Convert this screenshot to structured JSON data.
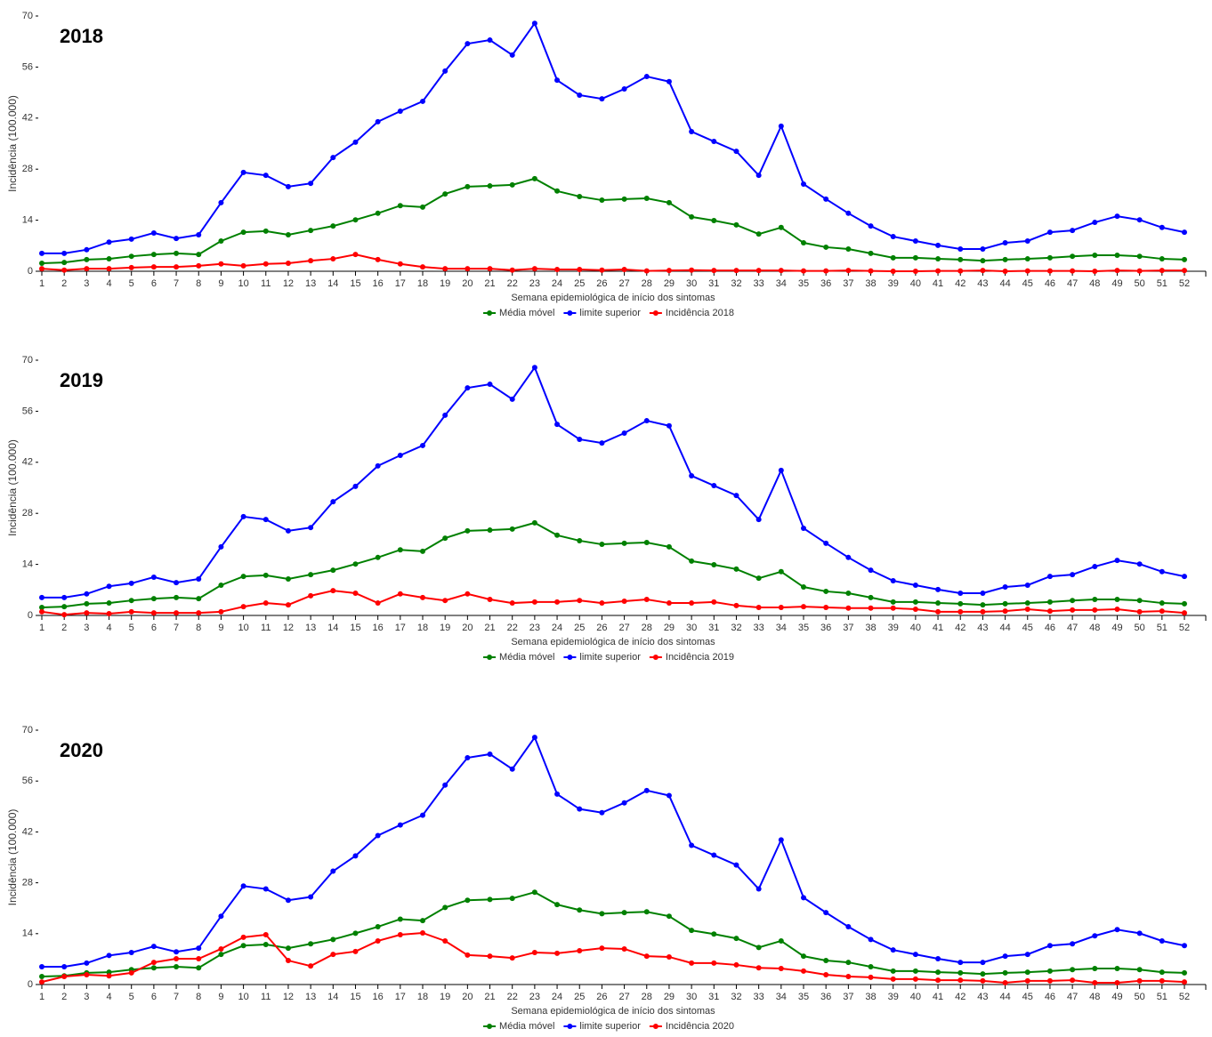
{
  "chart_data": [
    {
      "type": "line",
      "title": "2018",
      "y_label": "Incidência (100.000)",
      "x_label": "Semana epidemiológica de início dos sintomas",
      "x": [
        1,
        2,
        3,
        4,
        5,
        6,
        7,
        8,
        9,
        10,
        11,
        12,
        13,
        14,
        15,
        16,
        17,
        18,
        19,
        20,
        21,
        22,
        23,
        24,
        25,
        26,
        27,
        28,
        29,
        30,
        31,
        32,
        33,
        34,
        35,
        36,
        37,
        38,
        39,
        40,
        41,
        42,
        43,
        44,
        45,
        46,
        47,
        48,
        49,
        50,
        51,
        52
      ],
      "xlim": [
        1,
        52
      ],
      "ylim": [
        0,
        70
      ],
      "yticks": [
        0,
        14,
        28,
        42,
        56,
        70
      ],
      "series": [
        {
          "name": "Média móvel",
          "color": "#008000",
          "values": [
            2.2,
            2.4,
            3.2,
            3.4,
            4.1,
            4.6,
            4.9,
            4.6,
            8.3,
            10.7,
            11.0,
            10.0,
            11.2,
            12.4,
            14.1,
            15.9,
            18.0,
            17.6,
            21.2,
            23.2,
            23.4,
            23.7,
            25.4,
            22.0,
            20.5,
            19.5,
            19.8,
            20.0,
            18.8,
            14.9,
            13.9,
            12.7,
            10.2,
            12.0,
            7.8,
            6.6,
            6.1,
            4.9,
            3.7,
            3.7,
            3.4,
            3.2,
            2.9,
            3.2,
            3.4,
            3.7,
            4.1,
            4.4,
            4.4,
            4.1,
            3.4,
            3.2
          ]
        },
        {
          "name": "limite superior",
          "color": "#0000ff",
          "values": [
            4.9,
            4.9,
            5.9,
            8.0,
            8.8,
            10.5,
            9.0,
            10.0,
            18.8,
            27.1,
            26.3,
            23.2,
            24.1,
            31.2,
            35.4,
            41.0,
            43.9,
            46.6,
            54.9,
            62.4,
            63.4,
            59.3,
            68.0,
            52.4,
            48.3,
            47.3,
            50.0,
            53.4,
            52.0,
            38.3,
            35.6,
            32.9,
            26.3,
            39.8,
            23.9,
            19.8,
            15.9,
            12.4,
            9.5,
            8.3,
            7.1,
            6.1,
            6.1,
            7.8,
            8.3,
            10.7,
            11.2,
            13.4,
            15.1,
            14.1,
            12.0,
            10.7
          ]
        },
        {
          "name": "Incidência 2018",
          "color": "#ff0000",
          "values": [
            0.7,
            0.3,
            0.7,
            0.7,
            1.0,
            1.2,
            1.2,
            1.5,
            2.0,
            1.5,
            2.0,
            2.2,
            2.9,
            3.4,
            4.6,
            3.2,
            2.0,
            1.2,
            0.7,
            0.7,
            0.7,
            0.3,
            0.7,
            0.5,
            0.5,
            0.3,
            0.5,
            0.1,
            0.2,
            0.3,
            0.2,
            0.2,
            0.2,
            0.2,
            0.1,
            0.1,
            0.2,
            0.1,
            0.0,
            0.0,
            0.1,
            0.1,
            0.2,
            0.0,
            0.1,
            0.1,
            0.1,
            0.0,
            0.2,
            0.1,
            0.2,
            0.2
          ]
        }
      ]
    },
    {
      "type": "line",
      "title": "2019",
      "y_label": "Incidência (100.000)",
      "x_label": "Semana epidemiológica de início dos sintomas",
      "x": [
        1,
        2,
        3,
        4,
        5,
        6,
        7,
        8,
        9,
        10,
        11,
        12,
        13,
        14,
        15,
        16,
        17,
        18,
        19,
        20,
        21,
        22,
        23,
        24,
        25,
        26,
        27,
        28,
        29,
        30,
        31,
        32,
        33,
        34,
        35,
        36,
        37,
        38,
        39,
        40,
        41,
        42,
        43,
        44,
        45,
        46,
        47,
        48,
        49,
        50,
        51,
        52
      ],
      "xlim": [
        1,
        52
      ],
      "ylim": [
        0,
        70
      ],
      "yticks": [
        0,
        14,
        28,
        42,
        56,
        70
      ],
      "series": [
        {
          "name": "Média móvel",
          "color": "#008000",
          "values": [
            2.2,
            2.4,
            3.2,
            3.4,
            4.1,
            4.6,
            4.9,
            4.6,
            8.3,
            10.7,
            11.0,
            10.0,
            11.2,
            12.4,
            14.1,
            15.9,
            18.0,
            17.6,
            21.2,
            23.2,
            23.4,
            23.7,
            25.4,
            22.0,
            20.5,
            19.5,
            19.8,
            20.0,
            18.8,
            14.9,
            13.9,
            12.7,
            10.2,
            12.0,
            7.8,
            6.6,
            6.1,
            4.9,
            3.7,
            3.7,
            3.4,
            3.2,
            2.9,
            3.2,
            3.4,
            3.7,
            4.1,
            4.4,
            4.4,
            4.1,
            3.4,
            3.2
          ]
        },
        {
          "name": "limite superior",
          "color": "#0000ff",
          "values": [
            4.9,
            4.9,
            5.9,
            8.0,
            8.8,
            10.5,
            9.0,
            10.0,
            18.8,
            27.1,
            26.3,
            23.2,
            24.1,
            31.2,
            35.4,
            41.0,
            43.9,
            46.6,
            54.9,
            62.4,
            63.4,
            59.3,
            68.0,
            52.4,
            48.3,
            47.3,
            50.0,
            53.4,
            52.0,
            38.3,
            35.6,
            32.9,
            26.3,
            39.8,
            23.9,
            19.8,
            15.9,
            12.4,
            9.5,
            8.3,
            7.1,
            6.1,
            6.1,
            7.8,
            8.3,
            10.7,
            11.2,
            13.4,
            15.1,
            14.1,
            12.0,
            10.7
          ]
        },
        {
          "name": "Incidência 2019",
          "color": "#ff0000",
          "values": [
            1.0,
            0.2,
            0.7,
            0.5,
            1.0,
            0.7,
            0.7,
            0.7,
            1.0,
            2.4,
            3.4,
            2.9,
            5.4,
            6.8,
            6.1,
            3.4,
            5.9,
            4.9,
            4.1,
            5.9,
            4.4,
            3.4,
            3.7,
            3.7,
            4.1,
            3.4,
            3.9,
            4.4,
            3.4,
            3.4,
            3.7,
            2.7,
            2.2,
            2.2,
            2.4,
            2.2,
            2.0,
            2.0,
            2.0,
            1.7,
            1.0,
            1.0,
            1.0,
            1.2,
            1.7,
            1.2,
            1.5,
            1.5,
            1.7,
            1.0,
            1.2,
            0.7
          ]
        }
      ]
    },
    {
      "type": "line",
      "title": "2020",
      "y_label": "Incidência (100.000)",
      "x_label": "Semana epidemiológica de início dos sintomas",
      "x": [
        1,
        2,
        3,
        4,
        5,
        6,
        7,
        8,
        9,
        10,
        11,
        12,
        13,
        14,
        15,
        16,
        17,
        18,
        19,
        20,
        21,
        22,
        23,
        24,
        25,
        26,
        27,
        28,
        29,
        30,
        31,
        32,
        33,
        34,
        35,
        36,
        37,
        38,
        39,
        40,
        41,
        42,
        43,
        44,
        45,
        46,
        47,
        48,
        49,
        50,
        51,
        52
      ],
      "xlim": [
        1,
        52
      ],
      "ylim": [
        0,
        70
      ],
      "yticks": [
        0,
        14,
        28,
        42,
        56,
        70
      ],
      "series": [
        {
          "name": "Média móvel",
          "color": "#008000",
          "values": [
            2.2,
            2.4,
            3.2,
            3.4,
            4.1,
            4.6,
            4.9,
            4.6,
            8.3,
            10.7,
            11.0,
            10.0,
            11.2,
            12.4,
            14.1,
            15.9,
            18.0,
            17.6,
            21.2,
            23.2,
            23.4,
            23.7,
            25.4,
            22.0,
            20.5,
            19.5,
            19.8,
            20.0,
            18.8,
            14.9,
            13.9,
            12.7,
            10.2,
            12.0,
            7.8,
            6.6,
            6.1,
            4.9,
            3.7,
            3.7,
            3.4,
            3.2,
            2.9,
            3.2,
            3.4,
            3.7,
            4.1,
            4.4,
            4.4,
            4.1,
            3.4,
            3.2
          ]
        },
        {
          "name": "limite superior",
          "color": "#0000ff",
          "values": [
            4.9,
            4.9,
            5.9,
            8.0,
            8.8,
            10.5,
            9.0,
            10.0,
            18.8,
            27.1,
            26.3,
            23.2,
            24.1,
            31.2,
            35.4,
            41.0,
            43.9,
            46.6,
            54.9,
            62.4,
            63.4,
            59.3,
            68.0,
            52.4,
            48.3,
            47.3,
            50.0,
            53.4,
            52.0,
            38.3,
            35.6,
            32.9,
            26.3,
            39.8,
            23.9,
            19.8,
            15.9,
            12.4,
            9.5,
            8.3,
            7.1,
            6.1,
            6.1,
            7.8,
            8.3,
            10.7,
            11.2,
            13.4,
            15.1,
            14.1,
            12.0,
            10.7
          ]
        },
        {
          "name": "Incidência 2020",
          "color": "#ff0000",
          "values": [
            0.7,
            2.2,
            2.7,
            2.4,
            3.2,
            6.1,
            7.1,
            7.1,
            9.8,
            13.0,
            13.7,
            6.6,
            5.1,
            8.3,
            9.1,
            12.0,
            13.7,
            14.2,
            12.0,
            8.1,
            7.8,
            7.3,
            8.8,
            8.6,
            9.3,
            10.0,
            9.8,
            7.8,
            7.6,
            5.9,
            5.9,
            5.4,
            4.6,
            4.4,
            3.7,
            2.7,
            2.2,
            2.0,
            1.5,
            1.5,
            1.2,
            1.2,
            1.0,
            0.5,
            1.0,
            1.0,
            1.2,
            0.5,
            0.5,
            1.0,
            1.0,
            0.7
          ]
        }
      ]
    }
  ]
}
